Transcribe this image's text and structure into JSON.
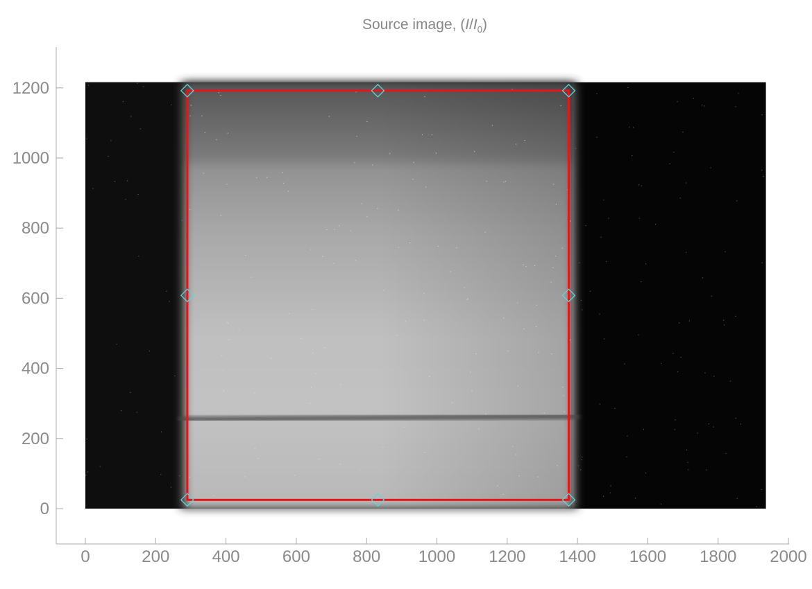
{
  "chart_data": {
    "type": "image",
    "title_main": "Source image, (",
    "title_var": "I",
    "title_sep": "/",
    "title_var2": "I",
    "title_sub": "0",
    "title_close": ")",
    "xlim": [
      -80,
      2000
    ],
    "ylim": [
      -100,
      1310
    ],
    "xticks": [
      0,
      200,
      400,
      600,
      800,
      1000,
      1200,
      1400,
      1600,
      1800,
      2000
    ],
    "yticks": [
      0,
      200,
      400,
      600,
      800,
      1000,
      1200
    ],
    "image_extent": {
      "x": [
        0,
        1936
      ],
      "y": [
        0,
        1216
      ]
    },
    "bright_region_x": [
      285,
      1385
    ],
    "dark_bands_y": [
      255,
      960
    ],
    "roi": {
      "x": [
        290,
        1375
      ],
      "y": [
        25,
        1192
      ]
    },
    "handles": [
      {
        "x": 290,
        "y": 1192
      },
      {
        "x": 832,
        "y": 1192
      },
      {
        "x": 1375,
        "y": 1192
      },
      {
        "x": 290,
        "y": 608
      },
      {
        "x": 1375,
        "y": 608
      },
      {
        "x": 290,
        "y": 25
      },
      {
        "x": 832,
        "y": 25
      },
      {
        "x": 1375,
        "y": 25
      }
    ],
    "colors": {
      "roi": "#e8141c",
      "handle": "#5fd6d6",
      "axis": "#a8a8a8",
      "text": "#8a8a8a"
    }
  }
}
